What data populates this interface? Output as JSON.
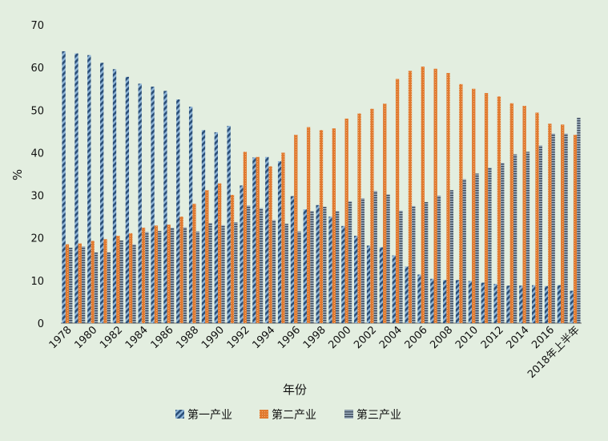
{
  "chart_data": {
    "type": "bar",
    "title": "",
    "xlabel": "年份",
    "ylabel": "%",
    "ylim": [
      0,
      70
    ],
    "yticks": [
      0,
      10,
      20,
      30,
      40,
      50,
      60,
      70
    ],
    "grid": false,
    "legend_position": "bottom",
    "categories": [
      "1978",
      "1979",
      "1980",
      "1981",
      "1982",
      "1983",
      "1984",
      "1985",
      "1986",
      "1987",
      "1988",
      "1989",
      "1990",
      "1991",
      "1992",
      "1993",
      "1994",
      "1995",
      "1996",
      "1997",
      "1998",
      "1999",
      "2000",
      "2001",
      "2002",
      "2003",
      "2004",
      "2005",
      "2006",
      "2007",
      "2008",
      "2009",
      "2010",
      "2011",
      "2012",
      "2013",
      "2014",
      "2015",
      "2016",
      "2017",
      "2018年上半年"
    ],
    "xtick_labels": [
      "1978",
      "1980",
      "1982",
      "1984",
      "1986",
      "1988",
      "1990",
      "1992",
      "1994",
      "1996",
      "1998",
      "2000",
      "2002",
      "2004",
      "2006",
      "2008",
      "2010",
      "2012",
      "2014",
      "2016",
      "2018年上半年"
    ],
    "series": [
      {
        "name": "第一产业",
        "color": "#2a4e78",
        "values": [
          63.8,
          63.3,
          62.9,
          61.1,
          59.6,
          57.8,
          56.2,
          55.5,
          54.5,
          52.5,
          50.8,
          45.3,
          44.8,
          46.3,
          32.3,
          38.9,
          39.0,
          38.0,
          29.8,
          26.7,
          27.7,
          25.0,
          22.8,
          20.5,
          18.2,
          17.8,
          15.9,
          13.3,
          11.4,
          10.4,
          10.1,
          10.1,
          9.9,
          9.5,
          9.2,
          8.8,
          8.8,
          8.9,
          8.7,
          8.9,
          7.6
        ]
      },
      {
        "name": "第二产业",
        "color": "#e07a30",
        "values": [
          18.5,
          18.7,
          19.3,
          19.7,
          20.5,
          21.1,
          22.4,
          22.9,
          23.1,
          25.0,
          28.0,
          31.2,
          32.8,
          30.1,
          40.2,
          39.0,
          36.8,
          40.0,
          44.2,
          46.0,
          45.3,
          45.7,
          48.0,
          49.2,
          50.3,
          51.5,
          57.3,
          59.2,
          60.2,
          59.7,
          58.7,
          56.1,
          55.0,
          54.0,
          53.2,
          51.6,
          51.0,
          49.4,
          46.8,
          46.6,
          44.2
        ]
      },
      {
        "name": "第三产业",
        "color": "#3c4a5a",
        "values": [
          17.7,
          18.0,
          16.6,
          16.6,
          19.4,
          18.5,
          21.4,
          21.6,
          22.4,
          22.5,
          21.5,
          23.5,
          23.0,
          23.7,
          27.6,
          27.0,
          24.2,
          23.3,
          21.5,
          26.3,
          27.3,
          26.3,
          28.6,
          29.3,
          31.0,
          30.2,
          26.4,
          27.5,
          28.4,
          29.9,
          31.2,
          33.8,
          35.1,
          36.5,
          37.6,
          39.6,
          40.2,
          41.7,
          44.5,
          44.5,
          48.2
        ]
      }
    ]
  }
}
